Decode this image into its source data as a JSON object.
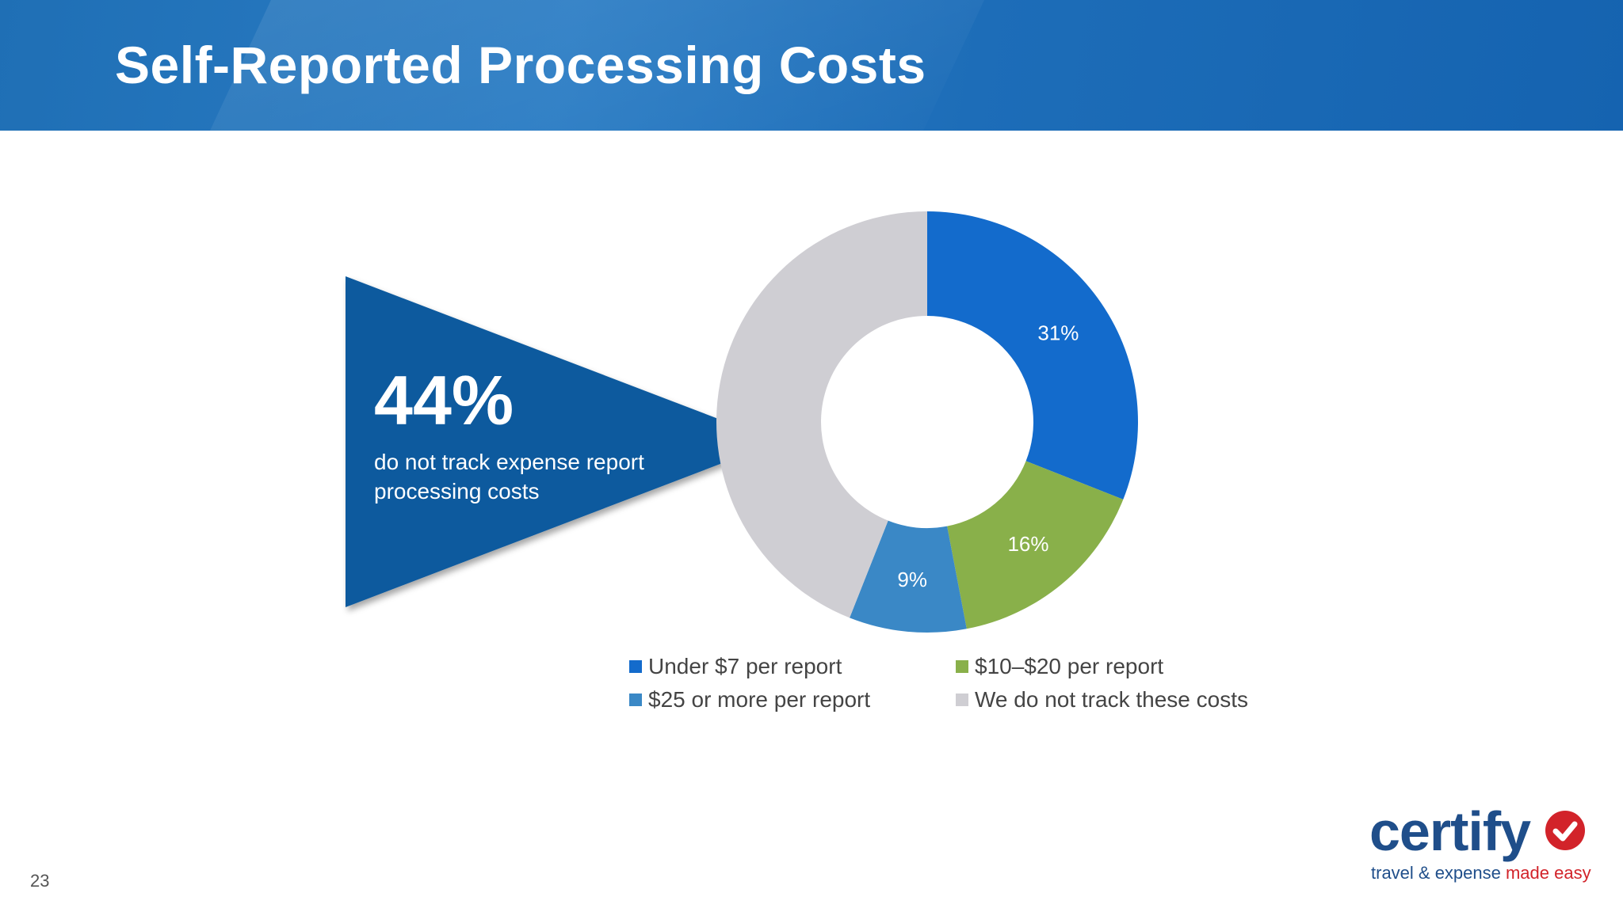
{
  "slide": {
    "title": "Self-Reported Processing Costs",
    "page_number": "23"
  },
  "callout": {
    "value": "44%",
    "text": "do not track expense report processing costs",
    "color": "#0b5a9e"
  },
  "logo": {
    "word": "certify",
    "tagline_part1": "travel & expense ",
    "tagline_part2": "made easy",
    "brand_blue": "#1f4e8a",
    "brand_red": "#d2232a"
  },
  "chart_data": {
    "type": "pie",
    "donut": true,
    "title": "",
    "legend_position": "bottom",
    "slices": [
      {
        "label": "Under $7 per report",
        "value": 31,
        "display": "31%",
        "color": "#136bcc"
      },
      {
        "label": "$10–$20 per report",
        "value": 16,
        "display": "16%",
        "color": "#89b04a"
      },
      {
        "label": "$25 or more per report",
        "value": 9,
        "display": "9%",
        "color": "#3a88c6"
      },
      {
        "label": "We do not track these costs",
        "value": 44,
        "display": "",
        "color": "#cfced3"
      }
    ]
  }
}
